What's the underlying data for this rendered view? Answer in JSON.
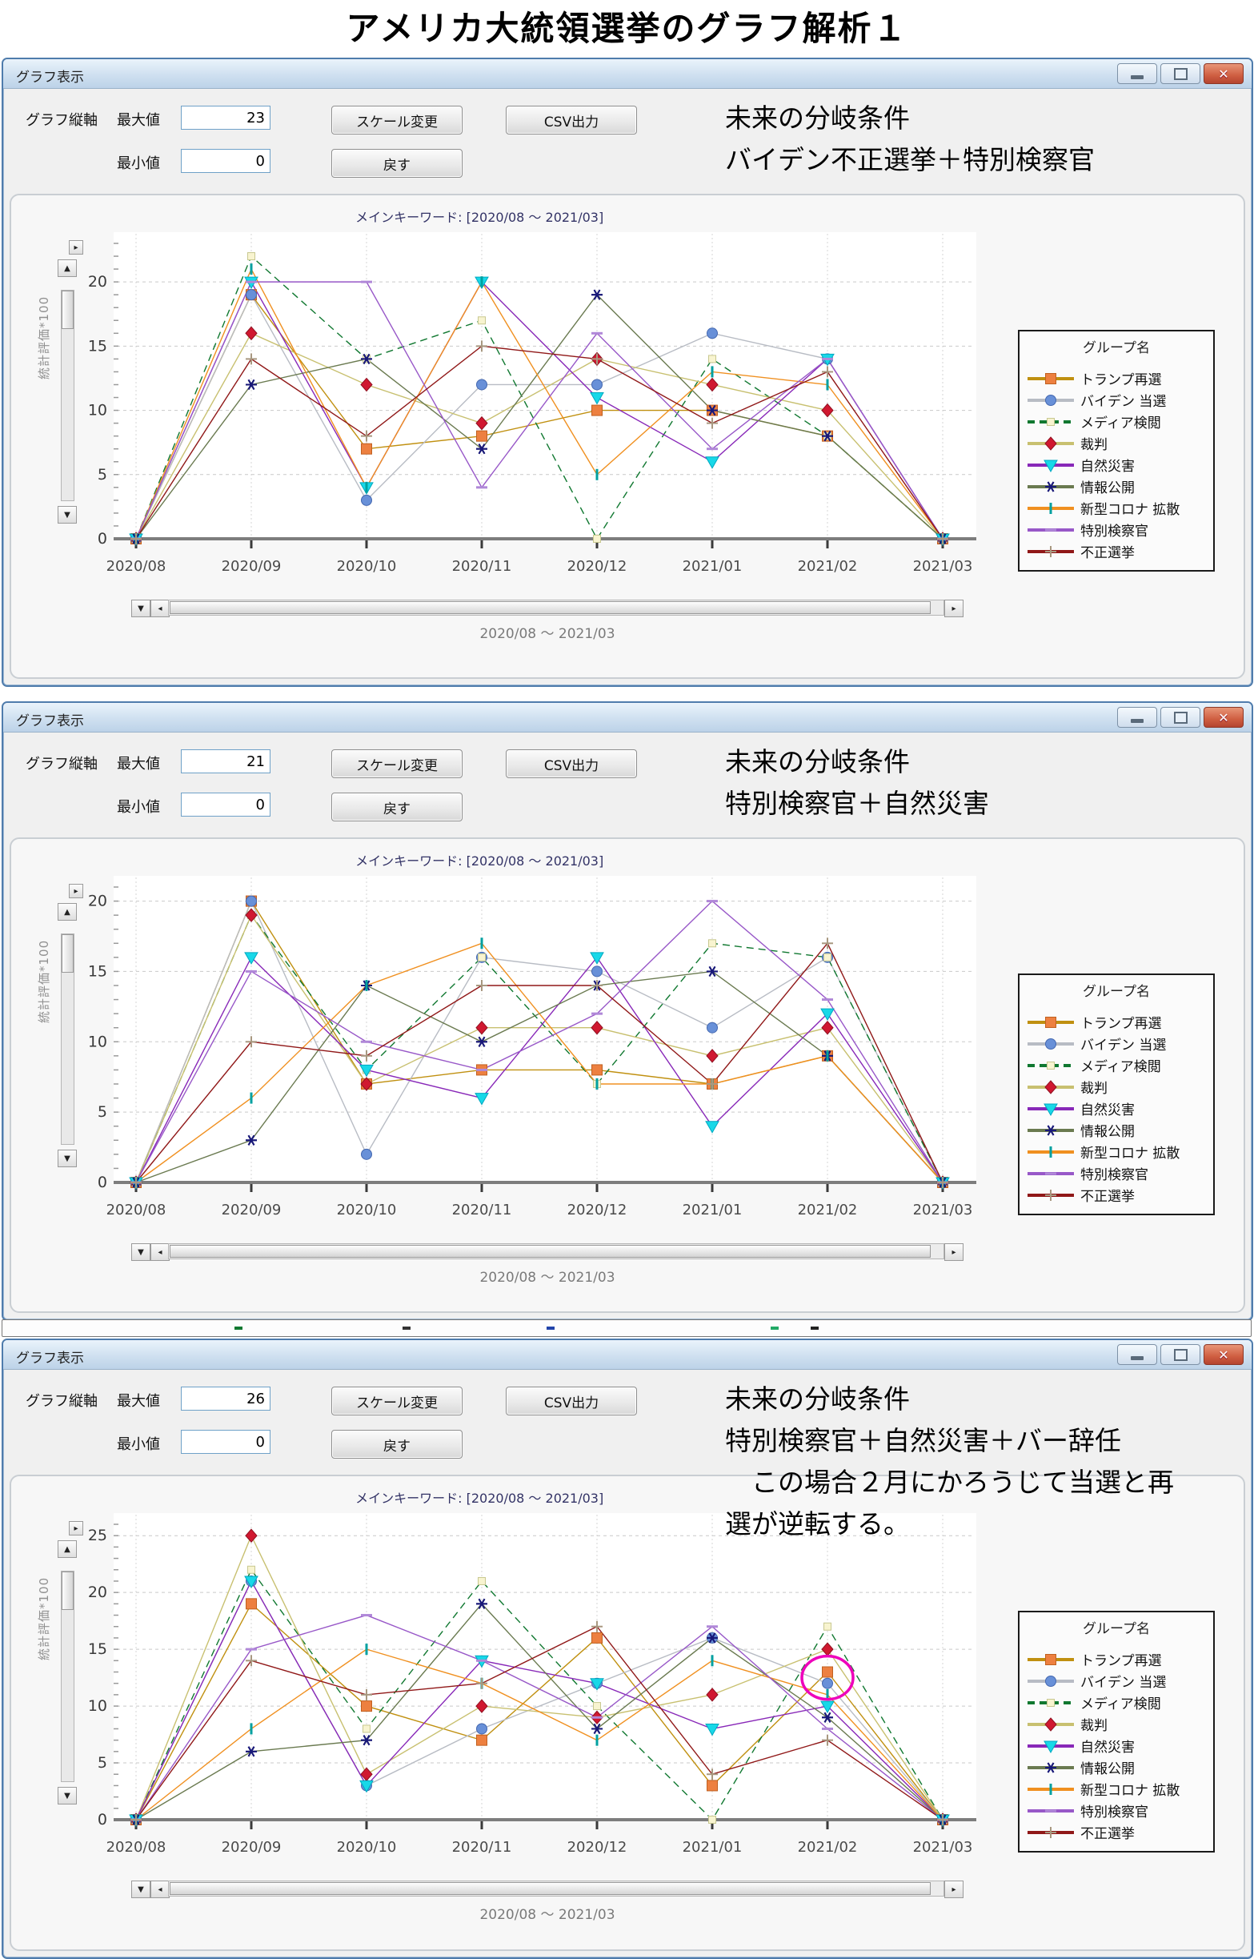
{
  "page_title": "アメリカ大統領選挙のグラフ解析１",
  "window_buttons": {
    "minimize": "minimize",
    "maximize": "maximize",
    "close": "close"
  },
  "legend": {
    "title": "グループ名",
    "items": [
      {
        "label": "トランプ再選",
        "line": "#c09010",
        "dash": "",
        "marker": "square",
        "marker_color": "#ed8040"
      },
      {
        "label": "バイデン 当選",
        "line": "#b8bcc4",
        "dash": "",
        "marker": "circle",
        "marker_color": "#6890d8"
      },
      {
        "label": "メディア検閲",
        "line": "#107830",
        "dash": "9 6",
        "marker": "palesquare",
        "marker_color": "#f8f4d0"
      },
      {
        "label": "裁判",
        "line": "#c8c070",
        "dash": "",
        "marker": "diamond",
        "marker_color": "#d01830"
      },
      {
        "label": "自然災害",
        "line": "#8828b8",
        "dash": "",
        "marker": "triangle",
        "marker_color": "#18d8e8"
      },
      {
        "label": "情報公開",
        "line": "#6a7a50",
        "dash": "",
        "marker": "asterisk",
        "marker_color": "#181878"
      },
      {
        "label": "新型コロナ 拡散",
        "line": "#f09020",
        "dash": "",
        "marker": "vbar",
        "marker_color": "#00a0a0"
      },
      {
        "label": "特別検察官",
        "line": "#9858c8",
        "dash": "",
        "marker": "hdash",
        "marker_color": "#b088d8"
      },
      {
        "label": "不正選挙",
        "line": "#901818",
        "dash": "",
        "marker": "plus",
        "marker_color": "#a89880"
      }
    ]
  },
  "windows": [
    {
      "title": "グラフ表示",
      "controls": {
        "axis_label": "グラフ縦軸",
        "max_label": "最大値",
        "max_value": "23",
        "min_label": "最小値",
        "min_value": "0",
        "scale_button": "スケール変更",
        "reset_button": "戻す",
        "csv_button": "CSV出力"
      },
      "annotation": [
        "未来の分岐条件",
        "バイデン不正選挙＋特別検察官"
      ],
      "chart_caption": "メインキーワード: [2020/08 ～ 2021/03]",
      "y_axis_label": "統計評価*100",
      "x_axis_caption": "2020/08 ～ 2021/03"
    },
    {
      "title": "グラフ表示",
      "controls": {
        "axis_label": "グラフ縦軸",
        "max_label": "最大値",
        "max_value": "21",
        "min_label": "最小値",
        "min_value": "0",
        "scale_button": "スケール変更",
        "reset_button": "戻す",
        "csv_button": "CSV出力"
      },
      "annotation": [
        "未来の分岐条件",
        "特別検察官＋自然災害"
      ],
      "chart_caption": "メインキーワード: [2020/08 ～ 2021/03]",
      "y_axis_label": "統計評価*100",
      "x_axis_caption": "2020/08 ～ 2021/03"
    },
    {
      "title": "グラフ表示",
      "controls": {
        "axis_label": "グラフ縦軸",
        "max_label": "最大値",
        "max_value": "26",
        "min_label": "最小値",
        "min_value": "0",
        "scale_button": "スケール変更",
        "reset_button": "戻す",
        "csv_button": "CSV出力"
      },
      "annotation": [
        "未来の分岐条件",
        "特別検察官＋自然災害＋バー辞任",
        "　この場合２月にかろうじて当選と再",
        "選が逆転する。"
      ],
      "chart_caption": "メインキーワード: [2020/08 ～ 2021/03]",
      "y_axis_label": "統計評価*100",
      "x_axis_caption": "2020/08 ～ 2021/03"
    }
  ],
  "chart_data": [
    {
      "type": "line",
      "title": "メインキーワード: [2020/08 ～ 2021/03]",
      "x": [
        "2020/08",
        "2020/09",
        "2020/10",
        "2020/11",
        "2020/12",
        "2021/01",
        "2021/02",
        "2021/03"
      ],
      "ylim": [
        0,
        23
      ],
      "yticks": [
        0,
        5,
        10,
        15,
        20
      ],
      "grid": true,
      "legend_position": "right",
      "series": [
        {
          "name": "トランプ再選",
          "values": [
            0,
            19,
            7,
            8,
            10,
            10,
            8,
            0
          ]
        },
        {
          "name": "バイデン 当選",
          "values": [
            0,
            19,
            3,
            12,
            12,
            16,
            14,
            0
          ]
        },
        {
          "name": "メディア検閲",
          "values": [
            0,
            22,
            14,
            17,
            0,
            14,
            8,
            0
          ]
        },
        {
          "name": "裁判",
          "values": [
            0,
            16,
            12,
            9,
            14,
            12,
            10,
            0
          ]
        },
        {
          "name": "自然災害",
          "values": [
            0,
            20,
            4,
            20,
            11,
            6,
            14,
            0
          ]
        },
        {
          "name": "情報公開",
          "values": [
            0,
            12,
            14,
            7,
            19,
            10,
            8,
            0
          ]
        },
        {
          "name": "新型コロナ 拡散",
          "values": [
            0,
            21,
            4,
            20,
            5,
            13,
            12,
            0
          ]
        },
        {
          "name": "特別検察官",
          "values": [
            0,
            20,
            20,
            4,
            16,
            7,
            14,
            0
          ]
        },
        {
          "name": "不正選挙",
          "values": [
            0,
            14,
            8,
            15,
            14,
            9,
            13,
            0
          ]
        }
      ]
    },
    {
      "type": "line",
      "title": "メインキーワード: [2020/08 ～ 2021/03]",
      "x": [
        "2020/08",
        "2020/09",
        "2020/10",
        "2020/11",
        "2020/12",
        "2021/01",
        "2021/02",
        "2021/03"
      ],
      "ylim": [
        0,
        21
      ],
      "yticks": [
        0,
        5,
        10,
        15,
        20
      ],
      "grid": true,
      "legend_position": "right",
      "series": [
        {
          "name": "トランプ再選",
          "values": [
            0,
            20,
            7,
            8,
            8,
            7,
            9,
            0
          ]
        },
        {
          "name": "バイデン 当選",
          "values": [
            0,
            20,
            2,
            16,
            15,
            11,
            16,
            0
          ]
        },
        {
          "name": "メディア検閲",
          "values": [
            0,
            19,
            8,
            16,
            7,
            17,
            16,
            0
          ]
        },
        {
          "name": "裁判",
          "values": [
            0,
            19,
            7,
            11,
            11,
            9,
            11,
            0
          ]
        },
        {
          "name": "自然災害",
          "values": [
            0,
            16,
            8,
            6,
            16,
            4,
            12,
            0
          ]
        },
        {
          "name": "情報公開",
          "values": [
            0,
            3,
            14,
            10,
            14,
            15,
            9,
            0
          ]
        },
        {
          "name": "新型コロナ 拡散",
          "values": [
            0,
            6,
            14,
            17,
            7,
            7,
            9,
            0
          ]
        },
        {
          "name": "特別検察官",
          "values": [
            0,
            15,
            10,
            8,
            12,
            20,
            13,
            0
          ]
        },
        {
          "name": "不正選挙",
          "values": [
            0,
            10,
            9,
            14,
            14,
            7,
            17,
            0
          ]
        }
      ]
    },
    {
      "type": "line",
      "title": "メインキーワード: [2020/08 ～ 2021/03]",
      "x": [
        "2020/08",
        "2020/09",
        "2020/10",
        "2020/11",
        "2020/12",
        "2021/01",
        "2021/02",
        "2021/03"
      ],
      "ylim": [
        0,
        26
      ],
      "yticks": [
        0,
        5,
        10,
        15,
        20,
        25
      ],
      "grid": true,
      "legend_position": "right",
      "highlight_ellipse": {
        "x_index": 6,
        "y_value": 12.5,
        "color": "#ee00bb"
      },
      "series": [
        {
          "name": "トランプ再選",
          "values": [
            0,
            19,
            10,
            7,
            16,
            3,
            13,
            0
          ]
        },
        {
          "name": "バイデン 当選",
          "values": [
            0,
            21,
            3,
            8,
            12,
            16,
            12,
            0
          ]
        },
        {
          "name": "メディア検閲",
          "values": [
            0,
            22,
            8,
            21,
            10,
            0,
            17,
            0
          ]
        },
        {
          "name": "裁判",
          "values": [
            0,
            25,
            4,
            10,
            9,
            11,
            15,
            0
          ]
        },
        {
          "name": "自然災害",
          "values": [
            0,
            21,
            3,
            14,
            12,
            8,
            10,
            0
          ]
        },
        {
          "name": "情報公開",
          "values": [
            0,
            6,
            7,
            19,
            8,
            16,
            9,
            0
          ]
        },
        {
          "name": "新型コロナ 拡散",
          "values": [
            0,
            8,
            15,
            12,
            7,
            14,
            11,
            0
          ]
        },
        {
          "name": "特別検察官",
          "values": [
            0,
            15,
            18,
            14,
            9,
            17,
            8,
            0
          ]
        },
        {
          "name": "不正選挙",
          "values": [
            0,
            14,
            11,
            12,
            17,
            4,
            7,
            0
          ]
        }
      ]
    }
  ]
}
